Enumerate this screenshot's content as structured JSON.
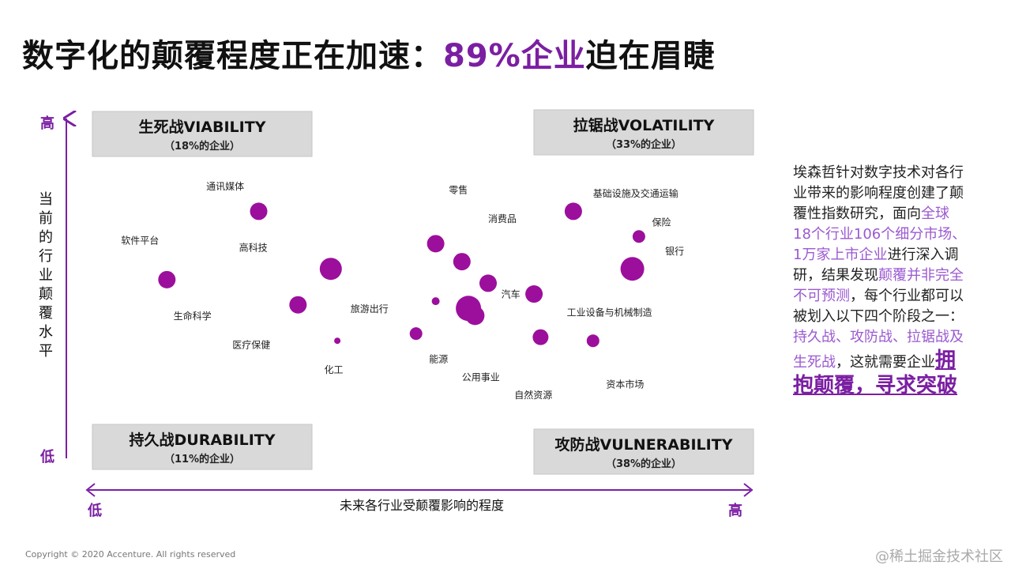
{
  "title": {
    "main": "数字化的颠覆程度正在加速：",
    "highlight": "89%企业",
    "tail": "迫在眉睫"
  },
  "side_text": {
    "p1": "埃森哲针对数字技术对各行业带来的影响程度创建了颠覆性指数研究，面向",
    "p2": "全球18个行业106个细分市场、1万家上市企业",
    "p3": "进行深入调研，结果发现",
    "p4": "颠覆并非完全不可预测",
    "p5": "，每个行业都可以被划入以下四个阶段之一：",
    "p6": "持久战、攻防战、拉锯战及生死战",
    "p7": "，这就需要企业",
    "p8": "拥抱颠覆，寻求突破"
  },
  "footer": {
    "copyright": "Copyright © 2020 Accenture. All rights reserved",
    "watermark": "@稀土掘金技术社区"
  },
  "colors": {
    "accent": "#7b1fa2",
    "bubble": "#9c0f9c",
    "box": "#d9d9d9"
  },
  "chart_data": {
    "type": "scatter",
    "ylabel": "当前的行业颠覆水平",
    "xlabel": "未来各行业受颠覆影响的程度",
    "y_low": "低",
    "y_high": "高",
    "x_low": "低",
    "x_high": "高",
    "quadrants": [
      {
        "name": "生死战VIABILITY",
        "share": "（18%的企业）",
        "position": "top-left"
      },
      {
        "name": "拉锯战VOLATILITY",
        "share": "（33%的企业）",
        "position": "top-right"
      },
      {
        "name": "持久战DURABILITY",
        "share": "（11%的企业）",
        "position": "bottom-left"
      },
      {
        "name": "攻防战VULNERABILITY",
        "share": "（38%的企业）",
        "position": "bottom-right"
      }
    ],
    "points": [
      {
        "label": "通讯媒体",
        "x": 0.25,
        "y": 0.72,
        "size": 11
      },
      {
        "label": "软件平台",
        "x": 0.11,
        "y": 0.53,
        "size": 11
      },
      {
        "label": "高科技",
        "x": 0.36,
        "y": 0.56,
        "size": 14
      },
      {
        "label": "生命科学",
        "x": 0.31,
        "y": 0.46,
        "size": 11
      },
      {
        "label": "医疗保健",
        "x": 0.37,
        "y": 0.36,
        "size": 4
      },
      {
        "label": "旅游出行",
        "x": 0.49,
        "y": 0.38,
        "size": 8
      },
      {
        "label": "化工",
        "x": 0.52,
        "y": 0.47,
        "size": 5
      },
      {
        "label": "零售",
        "x": 0.52,
        "y": 0.63,
        "size": 11
      },
      {
        "label": "消费品",
        "x": 0.56,
        "y": 0.58,
        "size": 11
      },
      {
        "label": "能源",
        "x": 0.6,
        "y": 0.52,
        "size": 11
      },
      {
        "label": "公用事业",
        "x": 0.57,
        "y": 0.45,
        "size": 16
      },
      {
        "label": "自然资源",
        "x": 0.58,
        "y": 0.43,
        "size": 12
      },
      {
        "label": "汽车",
        "x": 0.67,
        "y": 0.49,
        "size": 11
      },
      {
        "label": "工业设备与机械制造",
        "x": 0.68,
        "y": 0.37,
        "size": 10
      },
      {
        "label": "基础设施及交通运输",
        "x": 0.73,
        "y": 0.72,
        "size": 11
      },
      {
        "label": "保险",
        "x": 0.83,
        "y": 0.65,
        "size": 8
      },
      {
        "label": "银行",
        "x": 0.82,
        "y": 0.56,
        "size": 15
      },
      {
        "label": "资本市场",
        "x": 0.76,
        "y": 0.36,
        "size": 8
      }
    ],
    "text_labels": [
      {
        "text": "通讯媒体",
        "x": 0.17,
        "y": 0.78
      },
      {
        "text": "软件平台",
        "x": 0.04,
        "y": 0.63
      },
      {
        "text": "高科技",
        "x": 0.22,
        "y": 0.61
      },
      {
        "text": "生命科学",
        "x": 0.12,
        "y": 0.42
      },
      {
        "text": "医疗保健",
        "x": 0.21,
        "y": 0.34
      },
      {
        "text": "化工",
        "x": 0.35,
        "y": 0.27
      },
      {
        "text": "旅游出行",
        "x": 0.39,
        "y": 0.44
      },
      {
        "text": "零售",
        "x": 0.54,
        "y": 0.77
      },
      {
        "text": "消费品",
        "x": 0.6,
        "y": 0.69
      },
      {
        "text": "汽车",
        "x": 0.62,
        "y": 0.48
      },
      {
        "text": "能源",
        "x": 0.51,
        "y": 0.3
      },
      {
        "text": "公用事业",
        "x": 0.56,
        "y": 0.25
      },
      {
        "text": "自然资源",
        "x": 0.64,
        "y": 0.2
      },
      {
        "text": "工业设备与机械制造",
        "x": 0.72,
        "y": 0.43
      },
      {
        "text": "基础设施及交通运输",
        "x": 0.76,
        "y": 0.76
      },
      {
        "text": "保险",
        "x": 0.85,
        "y": 0.68
      },
      {
        "text": "银行",
        "x": 0.87,
        "y": 0.6
      },
      {
        "text": "资本市场",
        "x": 0.78,
        "y": 0.23
      }
    ],
    "grid": false,
    "legend": "none"
  }
}
